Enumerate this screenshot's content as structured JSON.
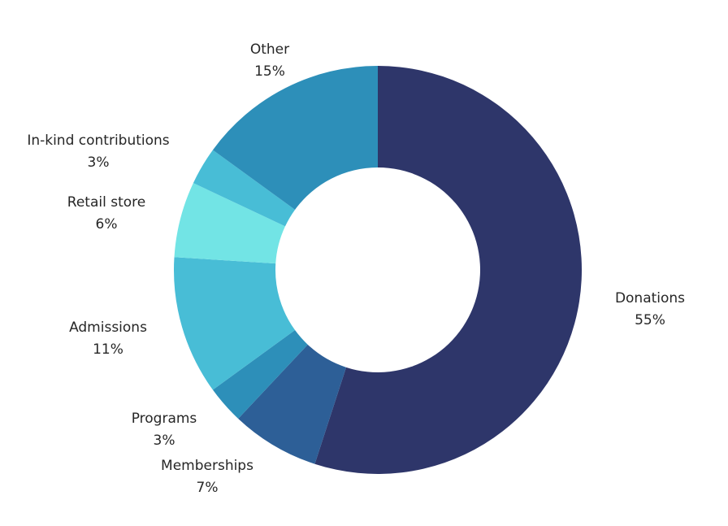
{
  "chart_data": {
    "type": "pie",
    "variant": "donut",
    "title": "",
    "legend": "none",
    "slices": [
      {
        "label": "Donations",
        "value": 55,
        "display": "55%",
        "color": "#2e366a"
      },
      {
        "label": "Memberships",
        "value": 7,
        "display": "7%",
        "color": "#2d5f97"
      },
      {
        "label": "Programs",
        "value": 3,
        "display": "3%",
        "color": "#2d8fb9"
      },
      {
        "label": "Admissions",
        "value": 11,
        "display": "11%",
        "color": "#48bdd6"
      },
      {
        "label": "Retail store",
        "value": 6,
        "display": "6%",
        "color": "#72e4e5"
      },
      {
        "label": "In-kind contributions",
        "value": 3,
        "display": "3%",
        "color": "#48bdd6"
      },
      {
        "label": "Other",
        "value": 15,
        "display": "15%",
        "color": "#2d8fb9"
      }
    ]
  }
}
